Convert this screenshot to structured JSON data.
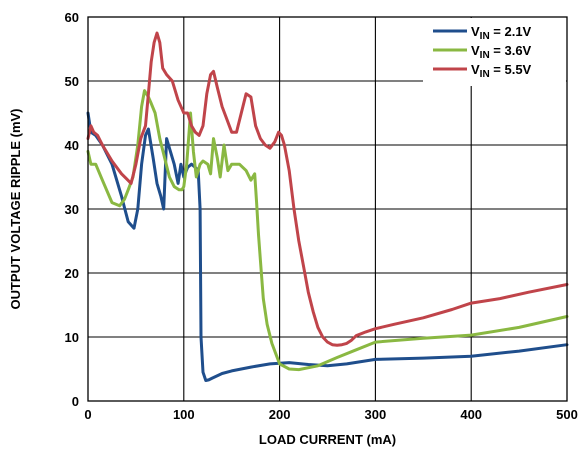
{
  "chart_data": {
    "type": "line",
    "xlabel": "LOAD CURRENT (mA)",
    "ylabel": "OUTPUT VOLTAGE RIPPLE (mV)",
    "xlim": [
      0,
      500
    ],
    "ylim": [
      0,
      60
    ],
    "xticks": [
      0,
      100,
      200,
      300,
      400,
      500
    ],
    "yticks": [
      0,
      10,
      20,
      30,
      40,
      50,
      60
    ],
    "grid": true,
    "legend_position": "top-right",
    "series": [
      {
        "name_main": "V",
        "name_sub": "IN",
        "name_rest": " = 2.1V",
        "color": "#1f4e8c",
        "x": [
          0,
          3,
          8,
          15,
          25,
          35,
          42,
          48,
          52,
          56,
          60,
          63,
          68,
          72,
          76,
          79,
          82,
          86,
          90,
          94,
          97,
          100,
          104,
          108,
          112,
          115,
          117,
          118,
          120,
          123,
          126,
          130,
          140,
          150,
          170,
          190,
          210,
          230,
          250,
          270,
          300,
          350,
          400,
          450,
          500
        ],
        "y": [
          45,
          42,
          41.5,
          40,
          37,
          32,
          28,
          27,
          30,
          37,
          41.5,
          42.5,
          38,
          34,
          32,
          30,
          41,
          39,
          37,
          34,
          37,
          35,
          36.5,
          37,
          36.5,
          36,
          30,
          10,
          4.5,
          3.2,
          3.3,
          3.6,
          4.3,
          4.7,
          5.3,
          5.8,
          6,
          5.7,
          5.5,
          5.8,
          6.5,
          6.7,
          7,
          7.8,
          8.8
        ]
      },
      {
        "name_main": "V",
        "name_sub": "IN",
        "name_rest": " = 3.6V",
        "color": "#8ab842",
        "x": [
          0,
          3,
          8,
          15,
          25,
          33,
          38,
          42,
          47,
          52,
          56,
          59,
          61,
          63,
          66,
          70,
          75,
          80,
          85,
          90,
          95,
          98,
          100,
          103,
          107,
          110,
          113,
          117,
          120,
          125,
          128,
          131,
          135,
          138,
          142,
          146,
          150,
          158,
          165,
          170,
          174,
          176,
          178,
          180,
          183,
          187,
          192,
          197,
          200,
          210,
          220,
          240,
          260,
          280,
          300,
          350,
          400,
          450,
          500
        ],
        "y": [
          39,
          37,
          37,
          34.5,
          31,
          30.5,
          31.5,
          33,
          35,
          40,
          46,
          48.5,
          48,
          47.5,
          46.5,
          45,
          41,
          38,
          35,
          33.5,
          33,
          33,
          33.5,
          37,
          45,
          39,
          35,
          37,
          37.5,
          37,
          35.5,
          41,
          38,
          35,
          40,
          36,
          37,
          37,
          36,
          34.5,
          35.5,
          31,
          26,
          22,
          16,
          12,
          9,
          7,
          5.8,
          5,
          4.9,
          5.5,
          6.8,
          8,
          9.2,
          9.8,
          10.3,
          11.5,
          13.2
        ]
      },
      {
        "name_main": "V",
        "name_sub": "IN",
        "name_rest": " = 5.5V",
        "color": "#c0444a",
        "x": [
          0,
          3,
          6,
          10,
          15,
          25,
          35,
          45,
          50,
          55,
          60,
          63,
          66,
          69,
          72,
          75,
          78,
          82,
          88,
          94,
          100,
          104,
          108,
          112,
          116,
          120,
          124,
          128,
          131,
          135,
          140,
          145,
          150,
          155,
          160,
          165,
          170,
          175,
          180,
          185,
          190,
          195,
          199,
          202,
          205,
          210,
          215,
          220,
          225,
          230,
          235,
          240,
          245,
          250,
          255,
          260,
          265,
          270,
          275,
          280,
          290,
          300,
          320,
          350,
          380,
          400,
          430,
          460,
          500
        ],
        "y": [
          41,
          43,
          42,
          41.5,
          40,
          37.5,
          35.5,
          34,
          37,
          41,
          43,
          48,
          53,
          56,
          57.5,
          56,
          52,
          51,
          50,
          47,
          45,
          45,
          43,
          42,
          41.5,
          43,
          48,
          51,
          51.5,
          49,
          46,
          44,
          42,
          42,
          45,
          48,
          47.5,
          43,
          41,
          40,
          39.5,
          40.5,
          42,
          41.5,
          40,
          36,
          30,
          25,
          21,
          17,
          14,
          11.5,
          10,
          9.2,
          8.8,
          8.7,
          8.8,
          9,
          9.5,
          10.2,
          10.8,
          11.3,
          12,
          13,
          14.3,
          15.3,
          16,
          17,
          18.2
        ]
      }
    ]
  }
}
